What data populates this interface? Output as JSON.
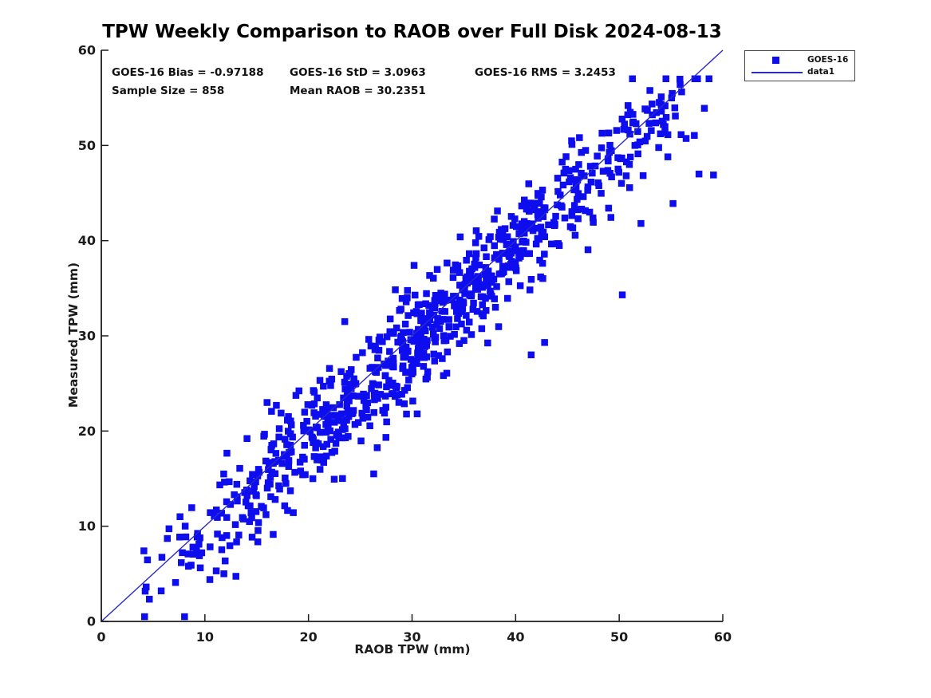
{
  "figure": {
    "title": "TPW Weekly Comparison to RAOB over Full Disk 2024-08-13",
    "stats": {
      "bias": "GOES-16 Bias = -0.97188",
      "std": "GOES-16 StD = 3.0963",
      "rms": "GOES-16 RMS = 3.2453",
      "sample_size": "Sample Size = 858",
      "mean_raob": "Mean RAOB = 30.2351"
    },
    "legend": {
      "marker_label": "GOES-16",
      "line_label": "data1"
    }
  },
  "chart_data": {
    "type": "scatter",
    "title": "TPW Weekly Comparison to RAOB over Full Disk 2024-08-13",
    "xlabel": "RAOB TPW (mm)",
    "ylabel": "Measured TPW (mm)",
    "xlim": [
      0,
      60
    ],
    "ylim": [
      0,
      60
    ],
    "x_ticks": [
      0,
      10,
      20,
      30,
      40,
      50,
      60
    ],
    "y_ticks": [
      0,
      10,
      20,
      30,
      40,
      50,
      60
    ],
    "grid": false,
    "legend_position": "top-right-outside",
    "axis_color": "#1c1c1c",
    "series": [
      {
        "name": "GOES-16",
        "type": "scatter",
        "marker": "square",
        "color": "#0d0dee",
        "marker_size_px": 8.5,
        "n_points": 858,
        "bias": -0.97188,
        "std": 3.0963,
        "rms": 3.2453,
        "mean_raob": 30.2351,
        "generator": {
          "seed": 20240813,
          "x_min": 2.5,
          "x_max": 59.8,
          "noise_std": 2.9,
          "max_dev": 7.5,
          "y_min": 0.5,
          "y_max": 57.0
        },
        "outlier_points": [
          [
            50.3,
            34.3
          ],
          [
            41.5,
            28.0
          ],
          [
            42.8,
            29.3
          ],
          [
            57.7,
            47.0
          ],
          [
            59.1,
            46.9
          ],
          [
            52.1,
            41.8
          ],
          [
            23.5,
            31.5
          ],
          [
            30.2,
            37.4
          ],
          [
            16.0,
            23.0
          ],
          [
            16.9,
            22.7
          ],
          [
            26.3,
            15.5
          ],
          [
            30.5,
            21.8
          ],
          [
            7.6,
            11.0
          ],
          [
            55.2,
            43.9
          ]
        ]
      },
      {
        "name": "data1",
        "type": "line",
        "color": "#2a2ac8",
        "from": [
          0,
          0
        ],
        "to": [
          60,
          60
        ]
      }
    ]
  }
}
